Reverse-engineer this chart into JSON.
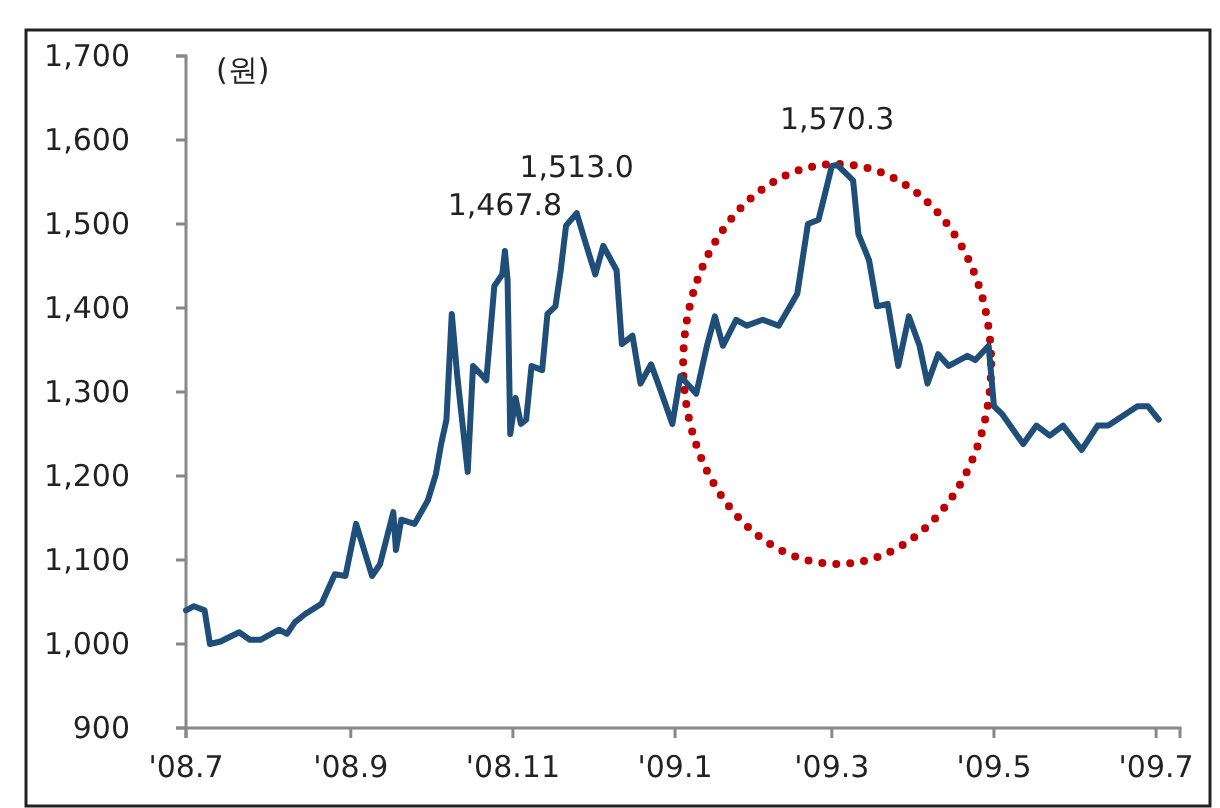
{
  "chart_data": {
    "type": "line",
    "ylabel": "(원)",
    "xlim": [
      "2008-07-01",
      "2009-07-10"
    ],
    "ylim": [
      900,
      1700
    ],
    "yticks": [
      {
        "value": 900,
        "label": "900"
      },
      {
        "value": 1000,
        "label": "1,000"
      },
      {
        "value": 1100,
        "label": "1,100"
      },
      {
        "value": 1200,
        "label": "1,200"
      },
      {
        "value": 1300,
        "label": "1,300"
      },
      {
        "value": 1400,
        "label": "1,400"
      },
      {
        "value": 1500,
        "label": "1,500"
      },
      {
        "value": 1600,
        "label": "1,600"
      },
      {
        "value": 1700,
        "label": "1,700"
      }
    ],
    "xticks": [
      {
        "value": "2008-07-01",
        "label": "'08.7"
      },
      {
        "value": "2008-09-01",
        "label": "'08.9"
      },
      {
        "value": "2008-11-01",
        "label": "'08.11"
      },
      {
        "value": "2009-01-01",
        "label": "'09.1"
      },
      {
        "value": "2009-03-01",
        "label": "'09.3"
      },
      {
        "value": "2009-05-01",
        "label": "'09.5"
      },
      {
        "value": "2009-07-01",
        "label": "'09.7"
      }
    ],
    "grid": false,
    "marker": "none",
    "line_style": "solid",
    "annotations": [
      {
        "text": "1,467.8",
        "x": "2008-10-29",
        "y": 1467.8
      },
      {
        "text": "1,513.0",
        "x": "2008-11-25",
        "y": 1513
      },
      {
        "text": "1,570.3",
        "x": "2009-03-03",
        "y": 1570.3
      }
    ],
    "series": [
      {
        "color": "#1f4e79",
        "x": [
          "2008-07-01",
          "2008-07-04",
          "2008-07-08",
          "2008-07-10",
          "2008-07-14",
          "2008-07-21",
          "2008-07-25",
          "2008-07-29",
          "2008-08-05",
          "2008-08-08",
          "2008-08-11",
          "2008-08-15",
          "2008-08-21",
          "2008-08-26",
          "2008-08-30",
          "2008-09-03",
          "2008-09-09",
          "2008-09-12",
          "2008-09-17",
          "2008-09-18",
          "2008-09-20",
          "2008-09-25",
          "2008-09-30",
          "2008-10-03",
          "2008-10-05",
          "2008-10-07",
          "2008-10-09",
          "2008-10-11",
          "2008-10-15",
          "2008-10-17",
          "2008-10-20",
          "2008-10-22",
          "2008-10-25",
          "2008-10-28",
          "2008-10-29",
          "2008-10-30",
          "2008-10-31",
          "2008-11-02",
          "2008-11-04",
          "2008-11-06",
          "2008-11-08",
          "2008-11-12",
          "2008-11-14",
          "2008-11-17",
          "2008-11-19",
          "2008-11-21",
          "2008-11-25",
          "2008-11-28",
          "2008-12-02",
          "2008-12-05",
          "2008-12-10",
          "2008-12-12",
          "2008-12-16",
          "2008-12-19",
          "2008-12-23",
          "2008-12-26",
          "2008-12-31",
          "2009-01-03",
          "2009-01-09",
          "2009-01-13",
          "2009-01-16",
          "2009-01-19",
          "2009-01-24",
          "2009-01-28",
          "2009-02-03",
          "2009-02-09",
          "2009-02-16",
          "2009-02-20",
          "2009-02-24",
          "2009-03-01",
          "2009-03-03",
          "2009-03-09",
          "2009-03-11",
          "2009-03-15",
          "2009-03-18",
          "2009-03-22",
          "2009-03-26",
          "2009-03-30",
          "2009-04-03",
          "2009-04-06",
          "2009-04-10",
          "2009-04-14",
          "2009-04-21",
          "2009-04-24",
          "2009-04-29",
          "2009-05-01",
          "2009-05-04",
          "2009-05-12",
          "2009-05-17",
          "2009-05-22",
          "2009-05-27",
          "2009-06-03",
          "2009-06-09",
          "2009-06-13",
          "2009-06-24",
          "2009-06-28",
          "2009-07-02"
        ],
        "values": [
          1040,
          1045,
          1040,
          1000,
          1003,
          1014,
          1005,
          1005,
          1017,
          1012,
          1026,
          1036,
          1048,
          1083,
          1081,
          1143,
          1081,
          1095,
          1157,
          1112,
          1148,
          1143,
          1171,
          1202,
          1238,
          1267,
          1393,
          1321,
          1205,
          1331,
          1321,
          1314,
          1426,
          1440,
          1467.8,
          1433,
          1250,
          1293,
          1262,
          1267,
          1331,
          1326,
          1393,
          1402,
          1445,
          1498,
          1513,
          1481,
          1440,
          1474,
          1445,
          1357,
          1367,
          1310,
          1333,
          1307,
          1262,
          1319,
          1298,
          1355,
          1390,
          1355,
          1386,
          1379,
          1386,
          1379,
          1417,
          1500,
          1505,
          1569,
          1570.3,
          1552,
          1488,
          1457,
          1402,
          1405,
          1331,
          1390,
          1355,
          1310,
          1345,
          1331,
          1343,
          1338,
          1355,
          1283,
          1274,
          1238,
          1260,
          1248,
          1260,
          1231,
          1260,
          1260,
          1283,
          1283,
          1267
        ]
      }
    ]
  }
}
